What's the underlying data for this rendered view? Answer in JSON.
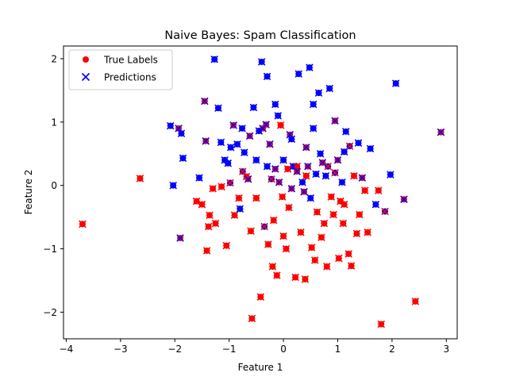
{
  "chart_data": {
    "type": "scatter",
    "title": "Naive Bayes: Spam Classification",
    "xlabel": "Feature 1",
    "ylabel": "Feature 2",
    "xlim": [
      -4.05,
      3.2
    ],
    "ylim": [
      -2.42,
      2.2
    ],
    "xticks": [
      -4,
      -3,
      -2,
      -1,
      0,
      1,
      2,
      3
    ],
    "yticks": [
      -2,
      -1,
      0,
      1,
      2
    ],
    "xtick_labels": [
      "−4",
      "−3",
      "−2",
      "−1",
      "0",
      "1",
      "2",
      "3"
    ],
    "ytick_labels": [
      "−2",
      "−1",
      "0",
      "1",
      "2"
    ],
    "grid": false,
    "legend_position": "top-left",
    "colors": {
      "class0": "#ff0000",
      "class1": "#0000ff"
    },
    "series": [
      {
        "name": "True Labels",
        "marker": "circle"
      },
      {
        "name": "Predictions",
        "marker": "x"
      }
    ],
    "points": [
      [
        -3.7,
        -0.61,
        0,
        0
      ],
      [
        -2.64,
        0.11,
        0,
        0
      ],
      [
        -2.08,
        0.94,
        1,
        1
      ],
      [
        -2.03,
        0.0,
        1,
        1
      ],
      [
        -1.93,
        0.9,
        0,
        1
      ],
      [
        -1.9,
        -0.83,
        0,
        1
      ],
      [
        -1.88,
        0.82,
        1,
        1
      ],
      [
        -1.85,
        0.43,
        1,
        1
      ],
      [
        -1.6,
        -0.25,
        0,
        0
      ],
      [
        -1.55,
        0.12,
        1,
        1
      ],
      [
        -1.5,
        -0.3,
        0,
        0
      ],
      [
        -1.45,
        1.33,
        0,
        1
      ],
      [
        -1.43,
        0.7,
        0,
        1
      ],
      [
        -1.41,
        -1.03,
        0,
        0
      ],
      [
        -1.38,
        -0.65,
        0,
        0
      ],
      [
        -1.36,
        -0.47,
        0,
        0
      ],
      [
        -1.3,
        -0.05,
        0,
        0
      ],
      [
        -1.27,
        1.99,
        1,
        1
      ],
      [
        -1.25,
        -0.6,
        0,
        0
      ],
      [
        -1.2,
        1.22,
        1,
        1
      ],
      [
        -1.15,
        0.68,
        1,
        1
      ],
      [
        -1.14,
        -0.02,
        0,
        0
      ],
      [
        -1.08,
        0.4,
        1,
        1
      ],
      [
        -1.05,
        -0.95,
        0,
        0
      ],
      [
        -0.98,
        0.04,
        1,
        0
      ],
      [
        -0.97,
        0.6,
        1,
        1
      ],
      [
        -0.92,
        0.95,
        0,
        1
      ],
      [
        -0.9,
        -0.47,
        0,
        0
      ],
      [
        -0.85,
        0.65,
        1,
        1
      ],
      [
        -0.82,
        -0.2,
        0,
        0
      ],
      [
        -0.8,
        -0.37,
        1,
        1
      ],
      [
        -0.76,
        0.9,
        1,
        1
      ],
      [
        -0.72,
        0.52,
        1,
        1
      ],
      [
        -0.68,
        0.14,
        0,
        0
      ],
      [
        -0.65,
        0.1,
        0,
        1
      ],
      [
        -0.6,
        -0.72,
        0,
        0
      ],
      [
        -0.58,
        -2.1,
        0,
        0
      ],
      [
        -0.55,
        1.23,
        1,
        1
      ],
      [
        -0.5,
        0.4,
        1,
        1
      ],
      [
        -0.5,
        -0.2,
        0,
        0
      ],
      [
        -0.45,
        0.86,
        1,
        1
      ],
      [
        -0.42,
        -1.76,
        0,
        0
      ],
      [
        -0.4,
        1.95,
        1,
        1
      ],
      [
        -0.38,
        0.9,
        0,
        1
      ],
      [
        -0.35,
        -0.65,
        1,
        0
      ],
      [
        -0.32,
        0.96,
        0,
        1
      ],
      [
        -0.3,
        1.72,
        1,
        1
      ],
      [
        -0.28,
        -0.93,
        0,
        0
      ],
      [
        -0.25,
        0.65,
        0,
        1
      ],
      [
        -0.22,
        0.1,
        1,
        0
      ],
      [
        -0.2,
        -1.28,
        0,
        0
      ],
      [
        -0.18,
        -0.55,
        0,
        0
      ],
      [
        -0.15,
        0.26,
        0,
        1
      ],
      [
        -0.12,
        -1.42,
        0,
        0
      ],
      [
        -0.1,
        1.1,
        1,
        1
      ],
      [
        -0.08,
        0.05,
        0,
        1
      ],
      [
        -0.05,
        0.95,
        0,
        0
      ],
      [
        -0.02,
        -0.18,
        0,
        0
      ],
      [
        0.0,
        -0.8,
        0,
        0
      ],
      [
        0.05,
        -1.0,
        0,
        0
      ],
      [
        0.08,
        0.26,
        0,
        0
      ],
      [
        0.1,
        -0.35,
        0,
        0
      ],
      [
        0.12,
        0.8,
        0,
        1
      ],
      [
        0.15,
        -0.05,
        0,
        1
      ],
      [
        0.18,
        0.3,
        1,
        1
      ],
      [
        0.22,
        -1.45,
        0,
        0
      ],
      [
        0.25,
        0.3,
        0,
        0
      ],
      [
        0.28,
        1.76,
        1,
        1
      ],
      [
        0.32,
        -0.74,
        0,
        0
      ],
      [
        0.35,
        0.05,
        1,
        1
      ],
      [
        0.38,
        -0.1,
        0,
        1
      ],
      [
        0.4,
        -1.48,
        0,
        0
      ],
      [
        0.42,
        0.6,
        0,
        1
      ],
      [
        0.45,
        0.3,
        0,
        1
      ],
      [
        0.48,
        1.86,
        1,
        1
      ],
      [
        0.5,
        -0.2,
        1,
        1
      ],
      [
        0.52,
        -0.98,
        0,
        0
      ],
      [
        0.55,
        1.28,
        1,
        1
      ],
      [
        0.58,
        -1.18,
        0,
        0
      ],
      [
        0.6,
        0.18,
        1,
        1
      ],
      [
        0.62,
        -0.42,
        0,
        0
      ],
      [
        0.65,
        1.46,
        1,
        1
      ],
      [
        0.68,
        0.5,
        1,
        1
      ],
      [
        0.7,
        -0.82,
        0,
        0
      ],
      [
        0.72,
        0.36,
        0,
        1
      ],
      [
        0.75,
        -0.6,
        0,
        0
      ],
      [
        0.78,
        0.15,
        1,
        1
      ],
      [
        0.8,
        -1.28,
        0,
        0
      ],
      [
        0.82,
        0.3,
        1,
        0
      ],
      [
        0.85,
        1.53,
        1,
        1
      ],
      [
        0.88,
        -0.18,
        0,
        0
      ],
      [
        0.92,
        -0.46,
        0,
        0
      ],
      [
        0.95,
        1.02,
        0,
        1
      ],
      [
        1.0,
        0.4,
        0,
        1
      ],
      [
        1.02,
        -1.15,
        0,
        0
      ],
      [
        1.05,
        -0.25,
        0,
        0
      ],
      [
        1.08,
        0.05,
        1,
        1
      ],
      [
        1.1,
        -0.6,
        0,
        0
      ],
      [
        1.12,
        -0.3,
        0,
        0
      ],
      [
        1.15,
        0.85,
        1,
        1
      ],
      [
        1.2,
        -1.08,
        0,
        0
      ],
      [
        1.22,
        0.62,
        1,
        0
      ],
      [
        1.25,
        -1.27,
        0,
        0
      ],
      [
        1.3,
        0.15,
        0,
        0
      ],
      [
        1.35,
        -0.76,
        0,
        0
      ],
      [
        1.4,
        -0.46,
        0,
        0
      ],
      [
        1.45,
        0.12,
        0,
        1
      ],
      [
        1.5,
        -0.08,
        0,
        0
      ],
      [
        1.55,
        -0.74,
        0,
        0
      ],
      [
        1.6,
        0.58,
        1,
        1
      ],
      [
        1.7,
        -0.3,
        1,
        1
      ],
      [
        1.75,
        -0.08,
        0,
        0
      ],
      [
        1.8,
        -2.19,
        0,
        0
      ],
      [
        1.87,
        -0.41,
        1,
        0
      ],
      [
        1.97,
        0.17,
        1,
        1
      ],
      [
        2.07,
        1.61,
        1,
        1
      ],
      [
        2.22,
        -0.22,
        0,
        1
      ],
      [
        2.43,
        -1.83,
        0,
        0
      ],
      [
        2.9,
        0.84,
        0,
        1
      ],
      [
        0.15,
        0.73,
        1,
        1
      ],
      [
        -0.62,
        0.78,
        0,
        1
      ],
      [
        0.95,
        0.2,
        1,
        0
      ],
      [
        -0.3,
        0.3,
        1,
        1
      ],
      [
        1.38,
        0.67,
        1,
        1
      ],
      [
        0.25,
        0.22,
        0,
        1
      ],
      [
        -1.02,
        0.35,
        1,
        1
      ],
      [
        0.55,
        0.9,
        1,
        1
      ],
      [
        -0.75,
        0.22,
        1,
        0
      ],
      [
        1.12,
        0.53,
        1,
        1
      ],
      [
        0.0,
        0.4,
        1,
        1
      ],
      [
        -0.15,
        1.28,
        1,
        1
      ],
      [
        0.42,
        0.15,
        0,
        0
      ]
    ]
  }
}
